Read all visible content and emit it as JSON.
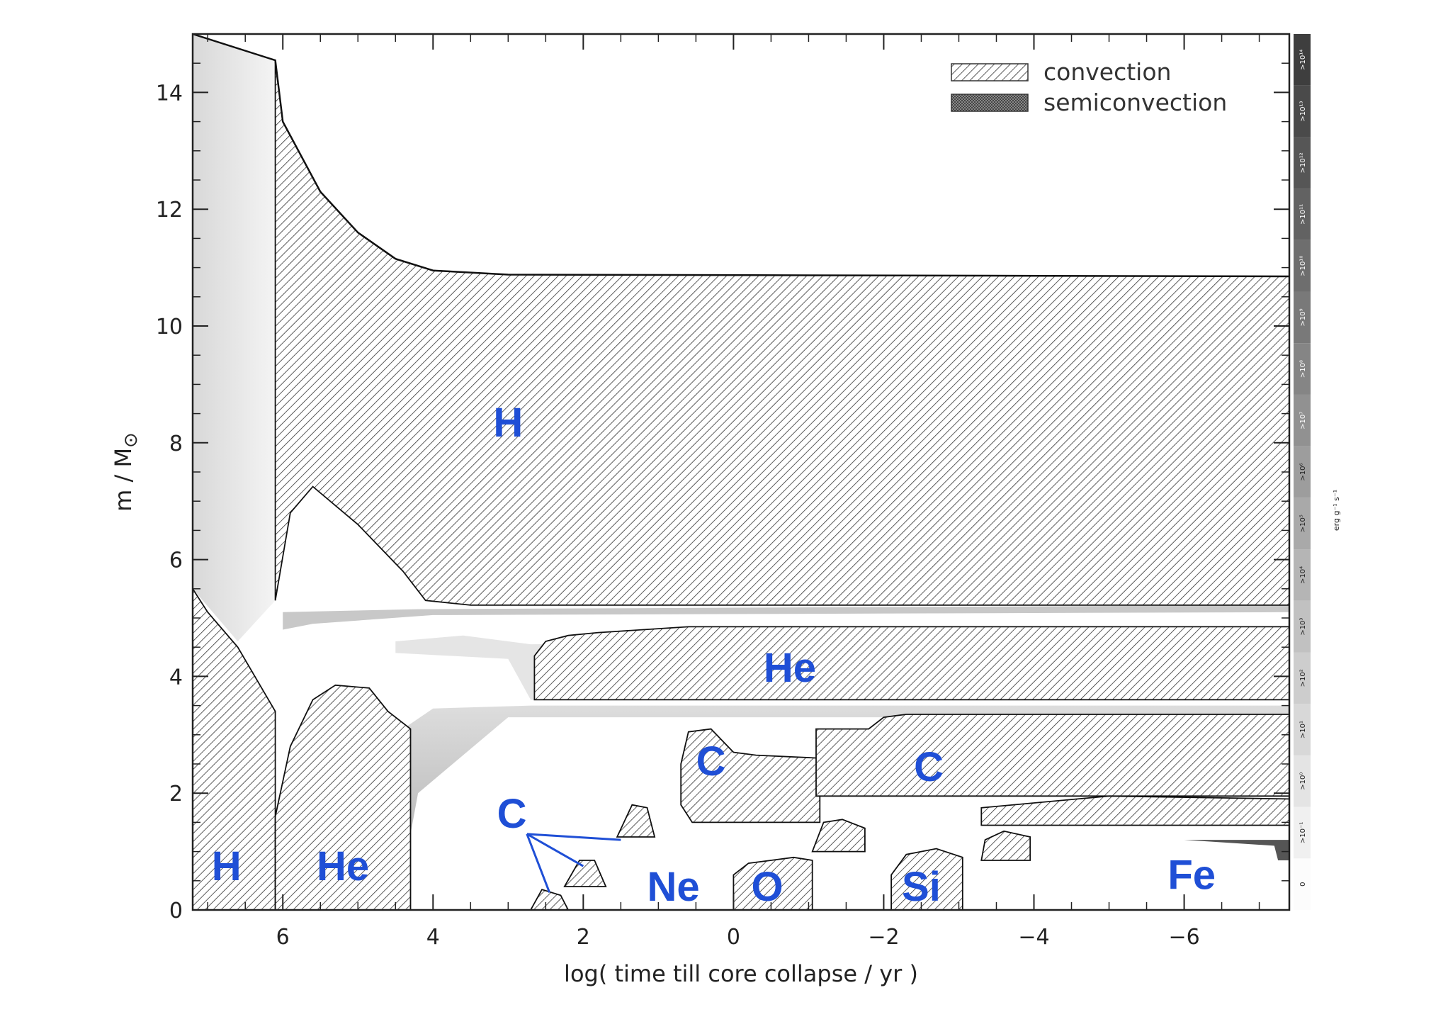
{
  "chart_data": {
    "type": "area",
    "title": "",
    "xlabel": "log( time till core collapse / yr )",
    "ylabel": "m / M",
    "ylabel_symbol": "⊙",
    "x_reversed": true,
    "xlim": [
      7.2,
      -7.4
    ],
    "ylim": [
      0,
      15
    ],
    "x_ticks": [
      6,
      4,
      2,
      0,
      -2,
      -4,
      -6
    ],
    "x_tick_labels": [
      "6",
      "4",
      "2",
      "0",
      "−2",
      "−4",
      "−6"
    ],
    "y_ticks": [
      0,
      2,
      4,
      6,
      8,
      10,
      12,
      14
    ],
    "y_tick_labels": [
      "0",
      "2",
      "4",
      "6",
      "8",
      "10",
      "12",
      "14"
    ],
    "legend": {
      "placement": "top-right",
      "entries": [
        {
          "label": "convection",
          "pattern": "hatch"
        },
        {
          "label": "semiconvection",
          "pattern": "crosshatch"
        }
      ]
    },
    "colorbar": {
      "unit": "erg g⁻¹ s⁻¹",
      "levels": [
        "0",
        ">10⁻¹",
        ">10⁰",
        ">10¹",
        ">10²",
        ">10³",
        ">10⁴",
        ">10⁵",
        ">10⁶",
        ">10⁷",
        ">10⁸",
        ">10⁹",
        ">10¹⁰",
        ">10¹¹",
        ">10¹²",
        ">10¹³",
        ">10¹⁴"
      ]
    },
    "stellar_mass_boundary": [
      {
        "x": 7.2,
        "y": 15.0
      },
      {
        "x": 6.1,
        "y": 14.55
      },
      {
        "x": 6.0,
        "y": 13.5
      },
      {
        "x": 5.5,
        "y": 12.3
      },
      {
        "x": 5.0,
        "y": 11.6
      },
      {
        "x": 4.5,
        "y": 11.15
      },
      {
        "x": 4.0,
        "y": 10.95
      },
      {
        "x": 3.0,
        "y": 10.88
      },
      {
        "x": -7.4,
        "y": 10.85
      }
    ],
    "convective_zones": [
      {
        "name": "H",
        "polygon": [
          [
            7.2,
            0
          ],
          [
            6.1,
            0
          ],
          [
            6.1,
            3.4
          ],
          [
            6.6,
            4.5
          ],
          [
            7.0,
            5.1
          ],
          [
            7.2,
            5.5
          ]
        ]
      },
      {
        "name": "H",
        "polygon": [
          [
            6.1,
            5.3
          ],
          [
            6.1,
            14.55
          ],
          [
            6.0,
            13.5
          ],
          [
            5.5,
            12.3
          ],
          [
            5.0,
            11.6
          ],
          [
            4.5,
            11.15
          ],
          [
            4.0,
            10.95
          ],
          [
            3.0,
            10.88
          ],
          [
            -7.4,
            10.85
          ],
          [
            -7.4,
            5.22
          ],
          [
            3.5,
            5.22
          ],
          [
            4.1,
            5.3
          ],
          [
            4.4,
            5.8
          ],
          [
            5.0,
            6.6
          ],
          [
            5.6,
            7.25
          ],
          [
            5.9,
            6.8
          ]
        ]
      },
      {
        "name": "He",
        "polygon": [
          [
            6.1,
            0
          ],
          [
            4.3,
            0
          ],
          [
            4.3,
            3.1
          ],
          [
            4.6,
            3.4
          ],
          [
            4.85,
            3.8
          ],
          [
            5.3,
            3.85
          ],
          [
            5.6,
            3.6
          ],
          [
            5.9,
            2.8
          ],
          [
            6.1,
            1.6
          ]
        ]
      },
      {
        "name": "He",
        "polygon": [
          [
            2.65,
            3.6
          ],
          [
            -7.4,
            3.6
          ],
          [
            -7.4,
            4.85
          ],
          [
            0.6,
            4.85
          ],
          [
            1.2,
            4.8
          ],
          [
            1.8,
            4.75
          ],
          [
            2.2,
            4.7
          ],
          [
            2.5,
            4.6
          ],
          [
            2.65,
            4.35
          ]
        ]
      },
      {
        "name": "C",
        "polygon": [
          [
            2.7,
            0
          ],
          [
            2.2,
            0
          ],
          [
            2.3,
            0.25
          ],
          [
            2.55,
            0.35
          ]
        ]
      },
      {
        "name": "C",
        "polygon": [
          [
            2.25,
            0.4
          ],
          [
            1.7,
            0.4
          ],
          [
            1.85,
            0.85
          ],
          [
            2.05,
            0.85
          ]
        ]
      },
      {
        "name": "C",
        "polygon": [
          [
            1.55,
            1.25
          ],
          [
            1.05,
            1.25
          ],
          [
            1.15,
            1.75
          ],
          [
            1.35,
            1.8
          ]
        ]
      },
      {
        "name": "C",
        "polygon": [
          [
            0.55,
            1.5
          ],
          [
            -1.15,
            1.5
          ],
          [
            -1.15,
            2.6
          ],
          [
            -0.3,
            2.65
          ],
          [
            0.0,
            2.7
          ],
          [
            0.3,
            3.1
          ],
          [
            0.6,
            3.05
          ],
          [
            0.7,
            2.5
          ],
          [
            0.7,
            1.8
          ]
        ]
      },
      {
        "name": "C",
        "polygon": [
          [
            -1.1,
            1.95
          ],
          [
            -7.4,
            1.95
          ],
          [
            -7.4,
            3.35
          ],
          [
            -2.3,
            3.35
          ],
          [
            -2.0,
            3.3
          ],
          [
            -1.8,
            3.1
          ],
          [
            -1.1,
            3.1
          ]
        ]
      },
      {
        "name": "O",
        "polygon": [
          [
            0.0,
            0
          ],
          [
            -1.05,
            0
          ],
          [
            -1.05,
            0.85
          ],
          [
            -0.8,
            0.9
          ],
          [
            -0.5,
            0.85
          ],
          [
            -0.2,
            0.8
          ],
          [
            0.0,
            0.6
          ]
        ]
      },
      {
        "name": "C",
        "polygon": [
          [
            -1.05,
            1.0
          ],
          [
            -1.75,
            1.0
          ],
          [
            -1.75,
            1.4
          ],
          [
            -1.45,
            1.55
          ],
          [
            -1.2,
            1.5
          ]
        ]
      },
      {
        "name": "Si",
        "polygon": [
          [
            -2.1,
            0
          ],
          [
            -3.05,
            0
          ],
          [
            -3.05,
            0.9
          ],
          [
            -2.7,
            1.05
          ],
          [
            -2.3,
            0.95
          ],
          [
            -2.1,
            0.6
          ]
        ]
      },
      {
        "name": "C",
        "polygon": [
          [
            -3.3,
            0.85
          ],
          [
            -3.95,
            0.85
          ],
          [
            -3.95,
            1.25
          ],
          [
            -3.6,
            1.35
          ],
          [
            -3.35,
            1.2
          ]
        ]
      },
      {
        "name": "C",
        "polygon": [
          [
            -3.3,
            1.45
          ],
          [
            -7.4,
            1.45
          ],
          [
            -7.4,
            1.9
          ],
          [
            -5.0,
            1.95
          ],
          [
            -3.3,
            1.75
          ]
        ]
      }
    ],
    "labels": [
      {
        "text": "H",
        "x": 6.75,
        "y": 0.75
      },
      {
        "text": "He",
        "x": 5.2,
        "y": 0.75
      },
      {
        "text": "H",
        "x": 3.0,
        "y": 8.35
      },
      {
        "text": "He",
        "x": -0.75,
        "y": 4.15
      },
      {
        "text": "C",
        "x": 0.3,
        "y": 2.55
      },
      {
        "text": "C",
        "x": -2.6,
        "y": 2.45
      },
      {
        "text": "C",
        "x": 2.95,
        "y": 1.65
      },
      {
        "text": "Ne",
        "x": 0.8,
        "y": 0.4
      },
      {
        "text": "O",
        "x": -0.45,
        "y": 0.4
      },
      {
        "text": "Si",
        "x": -2.5,
        "y": 0.4
      },
      {
        "text": "Fe",
        "x": -6.1,
        "y": 0.6
      }
    ]
  }
}
